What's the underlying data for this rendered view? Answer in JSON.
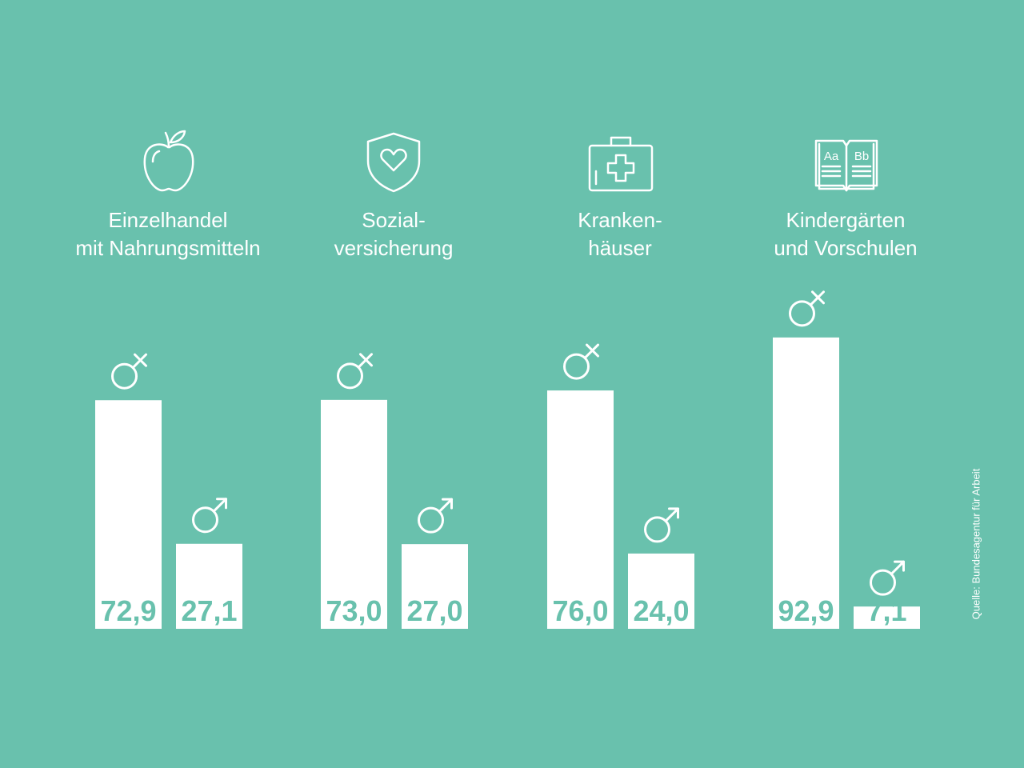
{
  "colors": {
    "background": "#69c1ad",
    "bar": "#ffffff",
    "value_text": "#69c1ad",
    "symbol": "#ffffff"
  },
  "source": "Quelle: Bundesagentur für Arbeit",
  "icons": [
    "apple-icon",
    "shield-heart-icon",
    "first-aid-kit-icon",
    "open-book-icon"
  ],
  "chart_data": {
    "type": "bar",
    "categories": [
      "Einzelhandel\nmit Nahrungsmitteln",
      "Sozial-\nversicherung",
      "Kranken-\nhäuser",
      "Kindergärten\nund Vorschulen"
    ],
    "series": [
      {
        "name": "♀",
        "values": [
          72.9,
          73.0,
          76.0,
          92.9
        ],
        "labels": [
          "72,9",
          "73,0",
          "76,0",
          "92,9"
        ]
      },
      {
        "name": "♂",
        "values": [
          27.1,
          27.0,
          24.0,
          7.1
        ],
        "labels": [
          "27,1",
          "27,0",
          "24,0",
          "7,1"
        ]
      }
    ],
    "ylim": [
      0,
      100
    ],
    "grid": false
  }
}
